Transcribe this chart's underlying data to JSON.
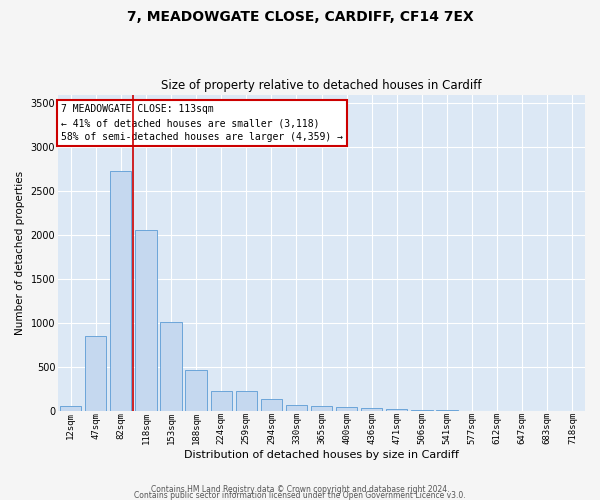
{
  "title1": "7, MEADOWGATE CLOSE, CARDIFF, CF14 7EX",
  "title2": "Size of property relative to detached houses in Cardiff",
  "xlabel": "Distribution of detached houses by size in Cardiff",
  "ylabel": "Number of detached properties",
  "bar_labels": [
    "12sqm",
    "47sqm",
    "82sqm",
    "118sqm",
    "153sqm",
    "188sqm",
    "224sqm",
    "259sqm",
    "294sqm",
    "330sqm",
    "365sqm",
    "400sqm",
    "436sqm",
    "471sqm",
    "506sqm",
    "541sqm",
    "577sqm",
    "612sqm",
    "647sqm",
    "683sqm",
    "718sqm"
  ],
  "bar_values": [
    60,
    850,
    2730,
    2060,
    1010,
    460,
    230,
    230,
    140,
    70,
    55,
    45,
    30,
    20,
    10,
    5,
    3,
    2,
    1,
    1,
    0
  ],
  "bar_color": "#c5d8ef",
  "bar_edge_color": "#5b9bd5",
  "vline_x_index": 3,
  "vline_color": "#cc0000",
  "annotation_line1": "7 MEADOWGATE CLOSE: 113sqm",
  "annotation_line2": "← 41% of detached houses are smaller (3,118)",
  "annotation_line3": "58% of semi-detached houses are larger (4,359) →",
  "annotation_box_edgecolor": "#cc0000",
  "ylim": [
    0,
    3600
  ],
  "yticks": [
    0,
    500,
    1000,
    1500,
    2000,
    2500,
    3000,
    3500
  ],
  "bg_color": "#dce8f5",
  "grid_color": "#ffffff",
  "fig_bg_color": "#f5f5f5",
  "footer1": "Contains HM Land Registry data © Crown copyright and database right 2024.",
  "footer2": "Contains public sector information licensed under the Open Government Licence v3.0."
}
